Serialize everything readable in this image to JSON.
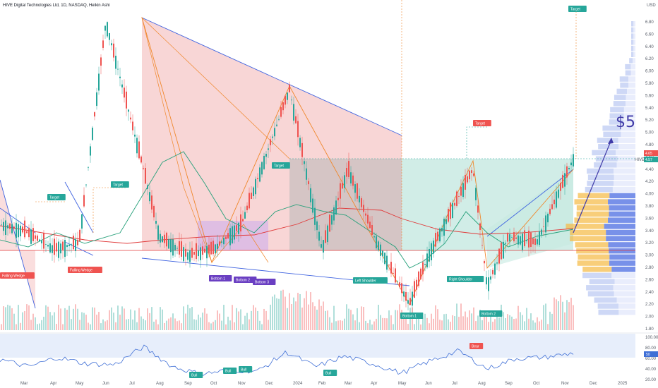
{
  "header": {
    "title": "HIVE Digital Technologies Ltd, 1D, NASDAQ, Heikin Ashi",
    "currency": "USD"
  },
  "price_badges": {
    "last": "4.57",
    "last_tag": "HIVE",
    "high": "4.65"
  },
  "annotation_big": "$5",
  "rsi_badge": "50",
  "colors": {
    "up": "#26a69a",
    "down": "#ef5350",
    "wedge_line": "#3f63e0",
    "harmonic_line": "#f0872b",
    "red_zone": "#f6c8c8",
    "gray_zone": "#bdbdbd",
    "green_zone": "#c6e9e1",
    "purple_zone": "#d8b8e6",
    "rsi_line": "#3f6fd6",
    "ma_red": "#e03a3a",
    "ma_green": "#26a07a"
  },
  "pattern_labels": [
    {
      "text": "Falling Wedge",
      "kind": "red"
    },
    {
      "text": "Falling Wedge",
      "kind": "red"
    },
    {
      "text": "Target",
      "kind": "green"
    },
    {
      "text": "Target",
      "kind": "green"
    },
    {
      "text": "Target",
      "kind": "green"
    },
    {
      "text": "Target",
      "kind": "red"
    },
    {
      "text": "Target",
      "kind": "green"
    },
    {
      "text": "Bottom 1",
      "kind": "purple"
    },
    {
      "text": "Bottom 2",
      "kind": "purple"
    },
    {
      "text": "Bottom 3",
      "kind": "purple"
    },
    {
      "text": "Left Shoulder",
      "kind": "green"
    },
    {
      "text": "Bottom 1",
      "kind": "green"
    },
    {
      "text": "Right Shoulder",
      "kind": "green"
    },
    {
      "text": "Bottom 2",
      "kind": "green"
    },
    {
      "text": "Bull",
      "kind": "green"
    },
    {
      "text": "Bull",
      "kind": "green"
    },
    {
      "text": "Bull",
      "kind": "green"
    },
    {
      "text": "Bull",
      "kind": "green"
    },
    {
      "text": "Bear",
      "kind": "red"
    }
  ],
  "chart_data": {
    "type": "line",
    "price_type": "Heikin Ashi",
    "x_tick_labels": [
      "Mar",
      "Apr",
      "May",
      "Jun",
      "Jul",
      "Aug",
      "Sep",
      "Oct",
      "Nov",
      "Dec",
      "2024",
      "Feb",
      "Mar",
      "Apr",
      "May",
      "Jun",
      "Jul",
      "Aug",
      "Sep",
      "Oct",
      "Nov",
      "Dec",
      "2025"
    ],
    "y_ticks": [
      "6.80",
      "6.60",
      "6.40",
      "6.20",
      "6.00",
      "5.80",
      "5.60",
      "5.40",
      "5.20",
      "5.00",
      "4.80",
      "4.60",
      "4.40",
      "4.20",
      "4.00",
      "3.80",
      "3.60",
      "3.40",
      "3.20",
      "3.00",
      "2.80",
      "2.60",
      "2.40",
      "2.20",
      "2.00",
      "1.80"
    ],
    "ylim": [
      1.8,
      6.8
    ],
    "series": [
      {
        "name": "",
        "x": [
          "Mar",
          "Apr",
          "May",
          "Jun",
          "Jul",
          "Aug",
          "Sep",
          "Oct",
          "Nov",
          "Dec",
          "2024",
          "Feb",
          "Mar",
          "Apr",
          "May",
          "Jun",
          "Jul",
          "Aug",
          "Sep",
          "Oct",
          "Nov"
        ],
        "values": [
          3.5,
          3.4,
          3.1,
          3.2,
          6.8,
          4.5,
          3.3,
          3.0,
          3.1,
          3.5,
          5.7,
          3.1,
          4.4,
          3.3,
          2.2,
          3.0,
          4.4,
          2.5,
          3.3,
          3.2,
          4.57
        ]
      }
    ],
    "rsi": {
      "y_ticks": [
        "100.00",
        "80.00",
        "60.00",
        "40.00",
        "20.00"
      ],
      "ylim": [
        20,
        100
      ],
      "values": [
        58,
        44,
        62,
        50,
        48,
        82,
        45,
        30,
        38,
        36,
        72,
        44,
        64,
        50,
        32,
        55,
        74,
        40,
        60,
        62,
        70
      ]
    }
  }
}
